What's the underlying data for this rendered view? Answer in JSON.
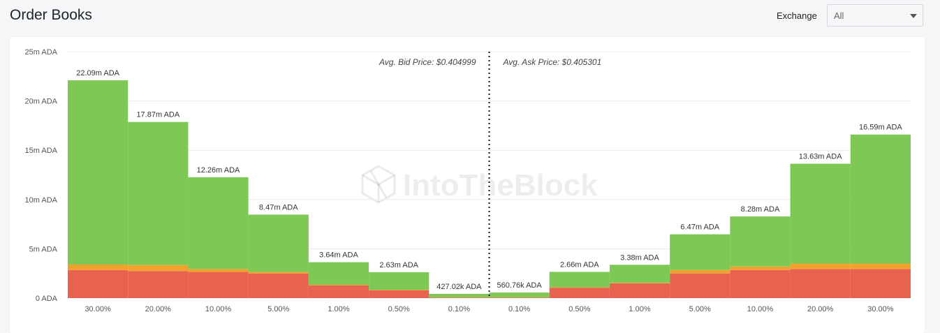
{
  "header": {
    "title": "Order Books",
    "exchange_label": "Exchange",
    "exchange_value": "All"
  },
  "watermark": "IntoTheBlock",
  "chart_data": {
    "type": "bar",
    "stacked": true,
    "categories": [
      "30.00%",
      "20.00%",
      "10.00%",
      "5.00%",
      "1.00%",
      "0.50%",
      "0.10%",
      "0.10%",
      "0.50%",
      "1.00%",
      "5.00%",
      "10.00%",
      "20.00%",
      "30.00%"
    ],
    "sides": [
      "bid",
      "bid",
      "bid",
      "bid",
      "bid",
      "bid",
      "bid",
      "ask",
      "ask",
      "ask",
      "ask",
      "ask",
      "ask",
      "ask"
    ],
    "totals": [
      22.09,
      17.87,
      12.26,
      8.47,
      3.64,
      2.63,
      0.42702,
      0.56076,
      2.66,
      3.38,
      6.47,
      8.28,
      13.63,
      16.59
    ],
    "total_labels": [
      "22.09m ADA",
      "17.87m ADA",
      "12.26m ADA",
      "8.47m ADA",
      "3.64m ADA",
      "2.63m ADA",
      "427.02k ADA",
      "560.76k ADA",
      "2.66m ADA",
      "3.38m ADA",
      "6.47m ADA",
      "8.28m ADA",
      "13.63m ADA",
      "16.59m ADA"
    ],
    "series": [
      {
        "color": "#e8634f",
        "values": [
          2.85,
          2.75,
          2.65,
          2.5,
          1.3,
          0.8,
          0.05,
          0.05,
          1.05,
          1.5,
          2.5,
          2.85,
          2.95,
          2.95
        ]
      },
      {
        "color": "#f2a12c",
        "values": [
          0.55,
          0.6,
          0.3,
          0.15,
          0.05,
          0.05,
          0.02,
          0.02,
          0.05,
          0.05,
          0.35,
          0.35,
          0.55,
          0.55
        ]
      },
      {
        "color": "#7ec855",
        "values": [
          18.69,
          14.52,
          9.31,
          5.82,
          2.29,
          1.78,
          0.35702,
          0.49076,
          1.56,
          1.83,
          3.62,
          5.08,
          10.13,
          13.09
        ]
      }
    ],
    "y_unit": "ADA",
    "ylim": [
      0,
      25
    ],
    "yticks": [
      0,
      5,
      10,
      15,
      20,
      25
    ],
    "ytick_labels": [
      "0 ADA",
      "5m ADA",
      "10m ADA",
      "15m ADA",
      "20m ADA",
      "25m ADA"
    ],
    "grid": true,
    "avg_bid_label": "Avg. Bid Price: $0.404999",
    "avg_ask_label": "Avg. Ask Price: $0.405301"
  }
}
